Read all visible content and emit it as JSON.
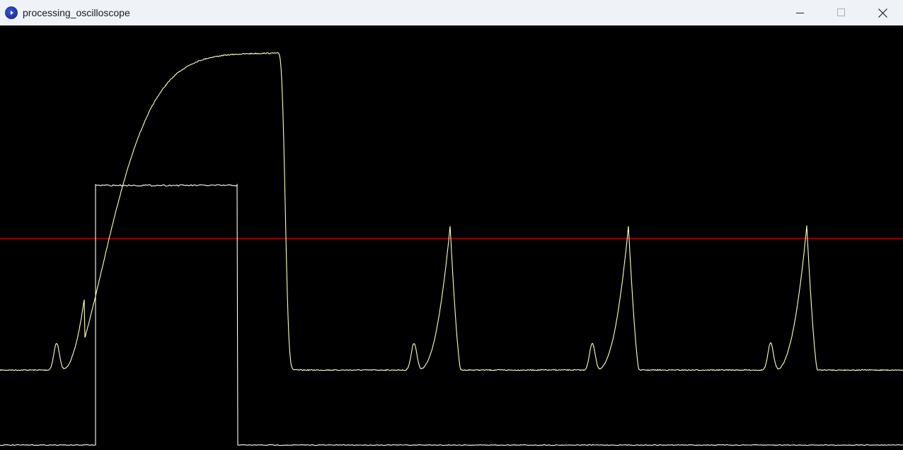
{
  "window": {
    "title": "processing_oscilloscope",
    "icon": "processing-app-icon",
    "controls": [
      "minimize-icon",
      "maximize-icon",
      "close-icon"
    ]
  },
  "colors": {
    "titlebar": "#eff3f8",
    "background": "#000000",
    "analog_trace": "#ffffc0",
    "digital_trace": "#ffffff",
    "threshold": "#ff0000"
  }
}
